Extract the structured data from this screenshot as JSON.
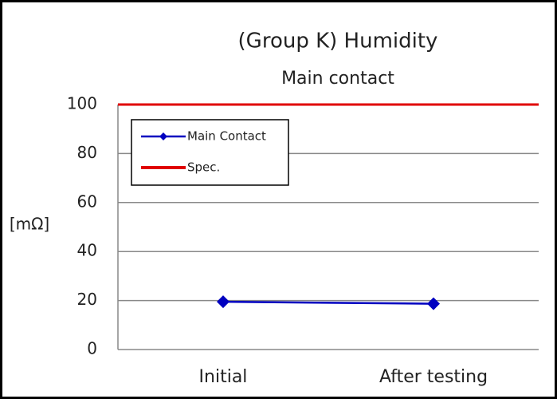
{
  "chart_data": {
    "type": "line",
    "title": "(Group K) Humidity",
    "subtitle": "Main contact",
    "y_label": "[mΩ]",
    "categories": [
      "Initial",
      "After testing"
    ],
    "series": [
      {
        "name": "Main Contact",
        "color": "#0000c0",
        "values": [
          19.5,
          18.7
        ],
        "marker": "diamond"
      },
      {
        "name": "Spec.",
        "color": "#e00000",
        "values": [
          100,
          100
        ]
      }
    ],
    "ylim": [
      0,
      100
    ],
    "yticks": [
      0,
      20,
      40,
      60,
      80,
      100
    ],
    "grid": true,
    "legend": "upper left"
  }
}
